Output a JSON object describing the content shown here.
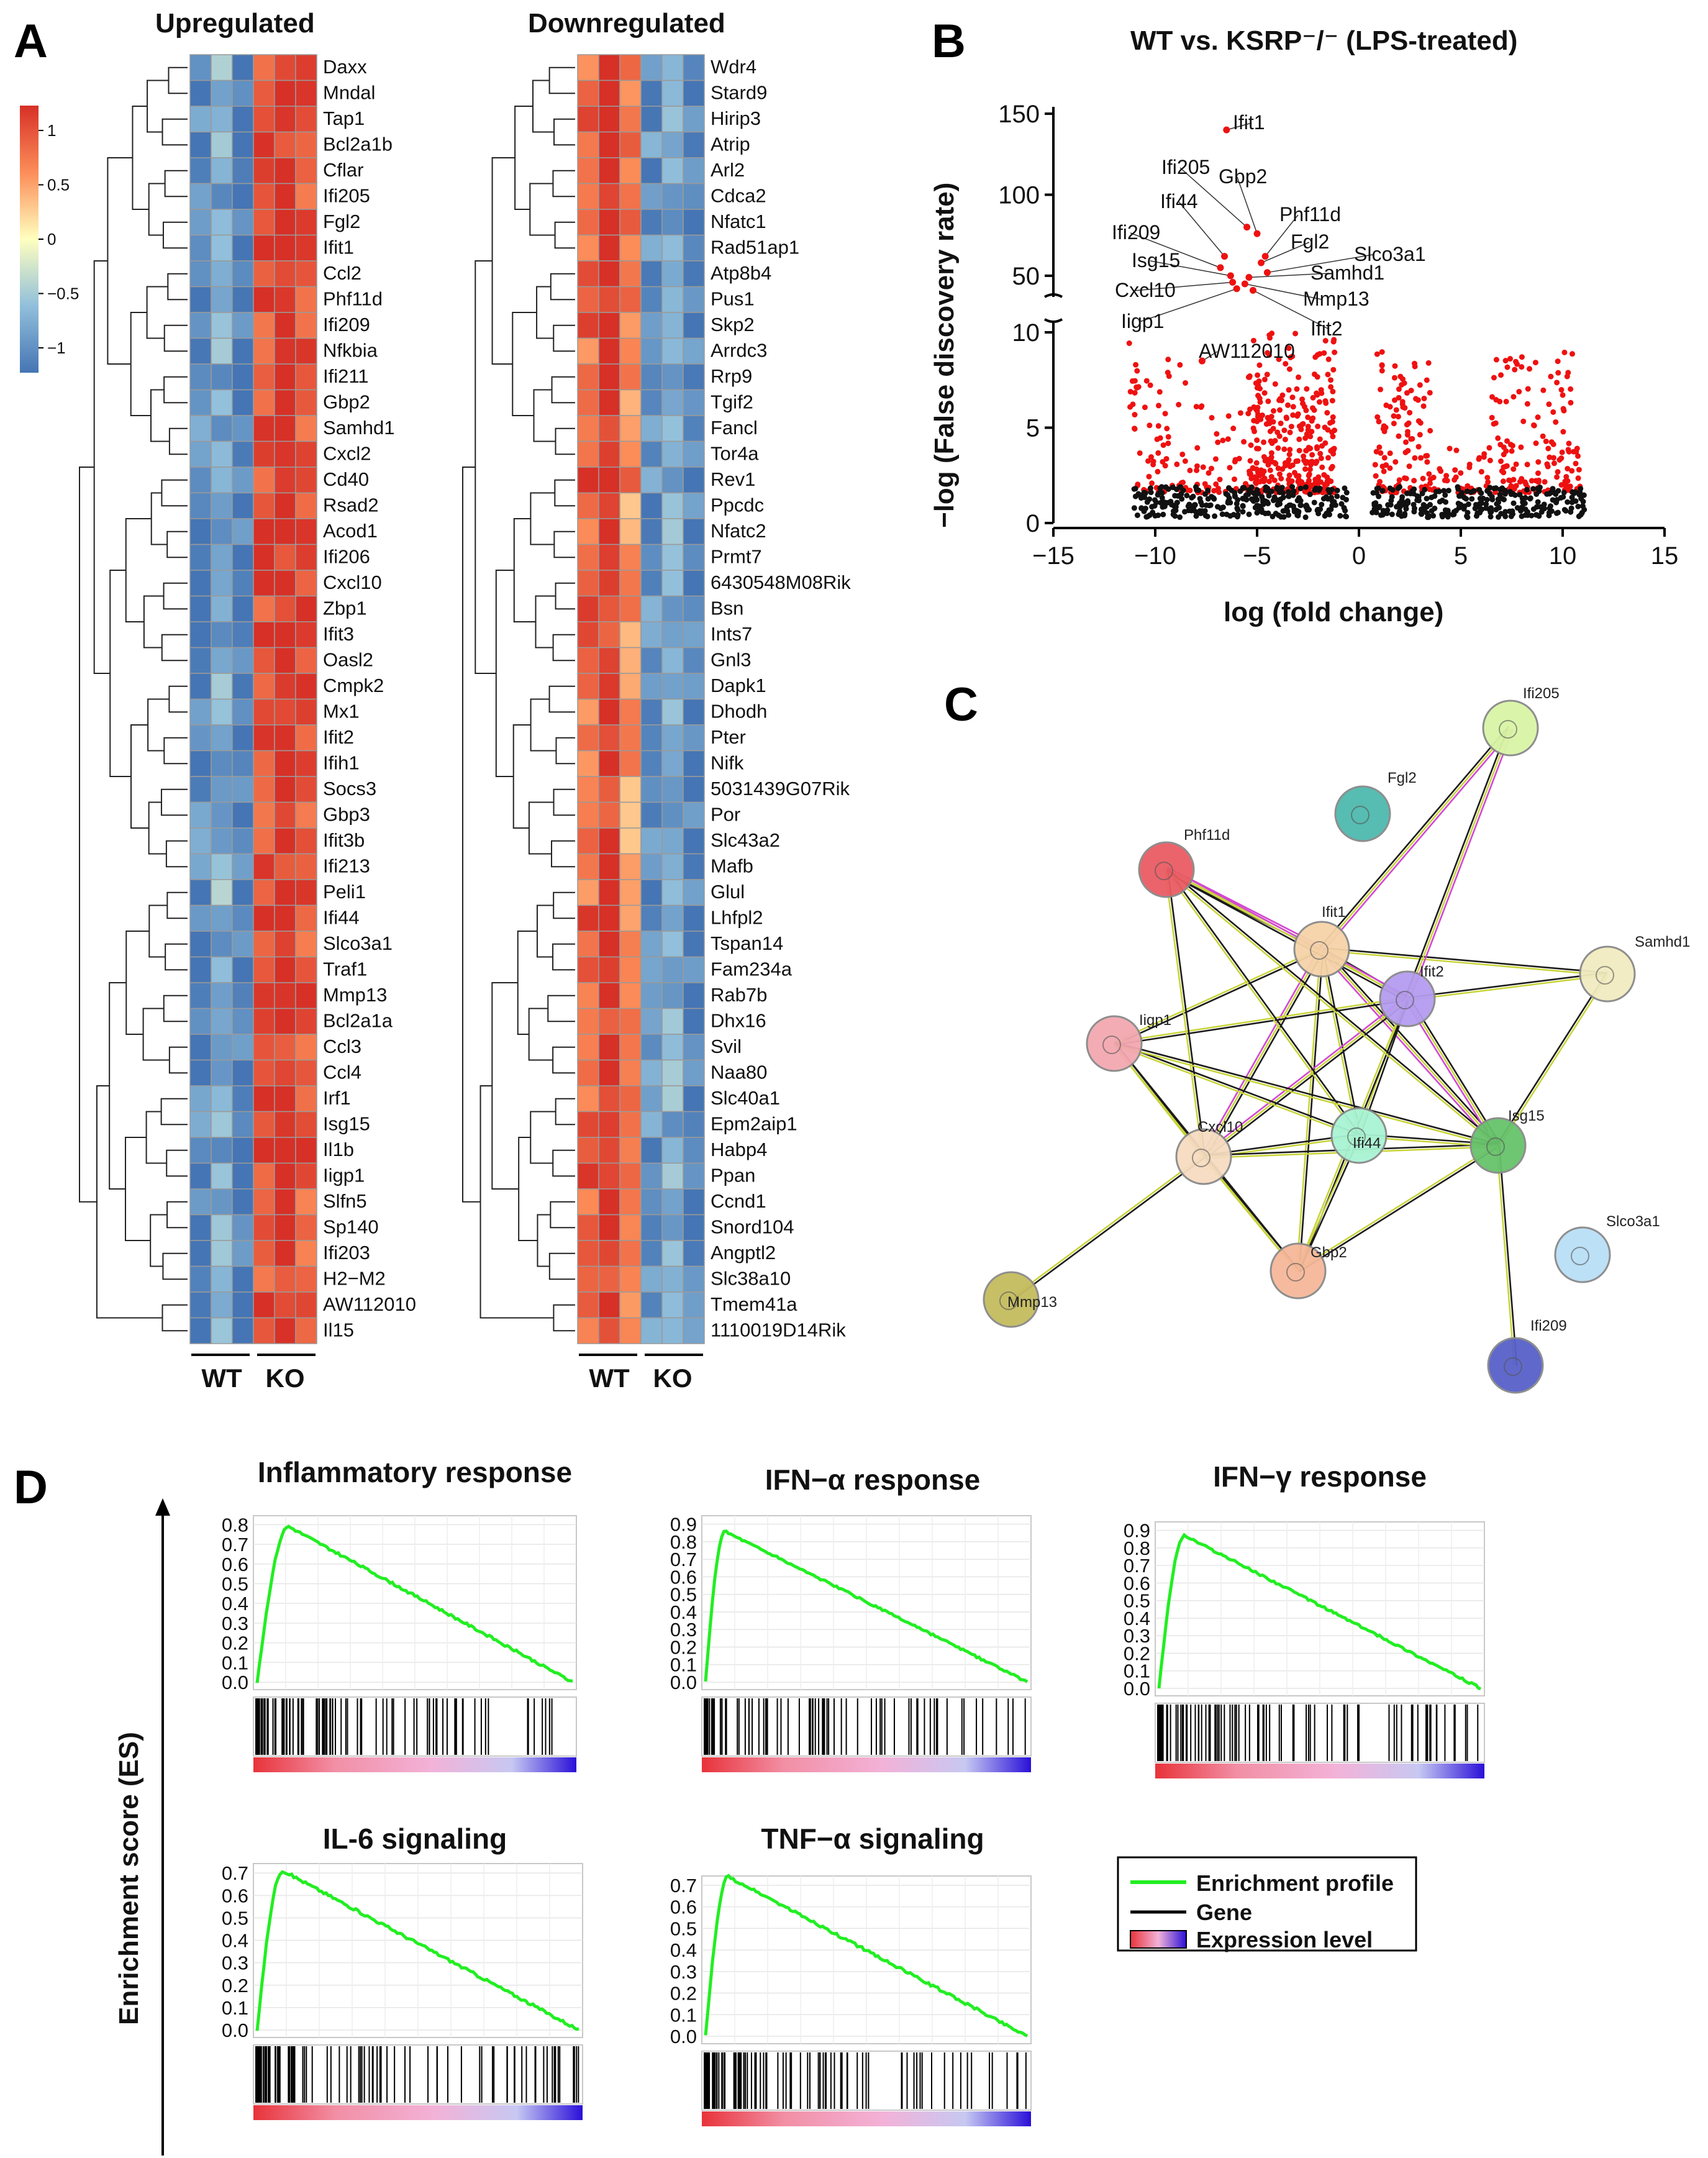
{
  "panel_letters": {
    "a": "A",
    "b": "B",
    "c": "C",
    "d": "D"
  },
  "colors": {
    "heat_low": "#4575b4",
    "heat_lowmid": "#91bfdb",
    "heat_mid": "#ffffbf",
    "heat_highmid": "#fc8d59",
    "heat_high": "#d73027",
    "volcano_sig": "#ee1111",
    "volcano_ns": "#111111",
    "gsea_line": "#22ee22",
    "gsea_bar_hi": "#e8333a",
    "gsea_bar_mid": "#f3b2d8",
    "gsea_bar_lo": "#2a10d8"
  },
  "heatmap": {
    "colorbar": {
      "ticks": [
        1,
        0.5,
        0,
        -0.5,
        -1
      ],
      "tick_labels": [
        "1",
        "0.5",
        "0",
        "−0.5",
        "−1"
      ]
    },
    "groups": [
      "WT",
      "KO"
    ],
    "upregulated": {
      "title": "Upregulated",
      "genes": [
        "Daxx",
        "Mndal",
        "Tap1",
        "Bcl2a1b",
        "Cflar",
        "Ifi205",
        "Fgl2",
        "Ifit1",
        "Ccl2",
        "Phf11d",
        "Ifi209",
        "Nfkbia",
        "Ifi211",
        "Gbp2",
        "Samhd1",
        "Cxcl2",
        "Cd40",
        "Rsad2",
        "Acod1",
        "Ifi206",
        "Cxcl10",
        "Zbp1",
        "Ifit3",
        "Oasl2",
        "Cmpk2",
        "Mx1",
        "Ifit2",
        "Ifih1",
        "Socs3",
        "Gbp3",
        "Ifit3b",
        "Ifi213",
        "Peli1",
        "Ifi44",
        "Slco3a1",
        "Traf1",
        "Mmp13",
        "Bcl2a1a",
        "Ccl3",
        "Ccl4",
        "Irf1",
        "Isg15",
        "Il1b",
        "Iigp1",
        "Slfn5",
        "Sp140",
        "Ifi203",
        "H2−M2",
        "AW112010",
        "Il15"
      ],
      "wt_pattern": [
        -0.9,
        -0.6,
        -1.0
      ],
      "ko_pattern": [
        0.85,
        1.0,
        0.8
      ]
    },
    "downregulated": {
      "title": "Downregulated",
      "genes": [
        "Wdr4",
        "Stard9",
        "Hirip3",
        "Atrip",
        "Arl2",
        "Cdca2",
        "Nfatc1",
        "Rad51ap1",
        "Atp8b4",
        "Pus1",
        "Skp2",
        "Arrdc3",
        "Rrp9",
        "Tgif2",
        "Fancl",
        "Tor4a",
        "Rev1",
        "Ppcdc",
        "Nfatc2",
        "Prmt7",
        "6430548M08Rik",
        "Bsn",
        "Ints7",
        "Gnl3",
        "Dapk1",
        "Dhodh",
        "Pter",
        "Nifk",
        "5031439G07Rik",
        "Por",
        "Slc43a2",
        "Mafb",
        "Glul",
        "Lhfpl2",
        "Tspan14",
        "Fam234a",
        "Rab7b",
        "Dhx16",
        "Svil",
        "Naa80",
        "Slc40a1",
        "Epm2aip1",
        "Habp4",
        "Ppan",
        "Ccnd1",
        "Snord104",
        "Angptl2",
        "Slc38a10",
        "Tmem41a",
        "1110019D14Rik"
      ],
      "wt_pattern": [
        0.7,
        1.0,
        0.5
      ],
      "ko_pattern": [
        -0.8,
        -0.6,
        -0.9
      ]
    }
  },
  "chart_data": [
    {
      "type": "scatter",
      "title": "WT vs. KSRP⁻/⁻ (LPS-treated)",
      "xlabel": "log (fold change)",
      "ylabel": "−log (False discovery rate)",
      "xlim": [
        -15,
        15
      ],
      "x_ticks": [
        -15,
        -10,
        -5,
        0,
        5,
        10,
        15
      ],
      "y_lower_ticks": [
        0,
        5,
        10
      ],
      "y_upper_ticks": [
        50,
        100,
        150
      ],
      "y_break": [
        10,
        40
      ],
      "labeled_points": [
        {
          "gene": "Ifit1",
          "x": -6.5,
          "y": 140
        },
        {
          "gene": "Ifi205",
          "x": -5.5,
          "y": 80
        },
        {
          "gene": "Gbp2",
          "x": -5.0,
          "y": 76
        },
        {
          "gene": "Ifi44",
          "x": -6.6,
          "y": 62
        },
        {
          "gene": "Phf11d",
          "x": -4.6,
          "y": 62
        },
        {
          "gene": "Fgl2",
          "x": -4.8,
          "y": 58
        },
        {
          "gene": "Ifi209",
          "x": -6.8,
          "y": 55
        },
        {
          "gene": "Slco3a1",
          "x": -4.5,
          "y": 52
        },
        {
          "gene": "Isg15",
          "x": -6.3,
          "y": 50
        },
        {
          "gene": "Samhd1",
          "x": -5.4,
          "y": 49
        },
        {
          "gene": "Cxcl10",
          "x": -6.2,
          "y": 46
        },
        {
          "gene": "Mmp13",
          "x": -5.6,
          "y": 45
        },
        {
          "gene": "Iigp1",
          "x": -6.0,
          "y": 42
        },
        {
          "gene": "Ifit2",
          "x": -5.2,
          "y": 41
        },
        {
          "gene": "AW112010",
          "x": -7.7,
          "y": 8.5
        }
      ],
      "series": [
        {
          "name": "significant",
          "color": "#ee1111",
          "description": "FDR-significant genes, clusters near x=-11..-8, -5..-1.5, 1..3, 6..11"
        },
        {
          "name": "not significant",
          "color": "#111111",
          "description": "genes with -log FDR < ~2"
        }
      ]
    },
    {
      "type": "line",
      "title": "Inflammatory response",
      "ylabel": "Enrichment score (ES)",
      "y_ticks": [
        0.0,
        0.1,
        0.2,
        0.3,
        0.4,
        0.5,
        0.6,
        0.7,
        0.8
      ],
      "ylim": [
        0.0,
        0.8
      ],
      "peak_es": 0.79,
      "peak_fraction": 0.1,
      "end_es": 0.0
    },
    {
      "type": "line",
      "title": "IFN−α response",
      "ylabel": "Enrichment score (ES)",
      "y_ticks": [
        0.0,
        0.1,
        0.2,
        0.3,
        0.4,
        0.5,
        0.6,
        0.7,
        0.8,
        0.9
      ],
      "ylim": [
        0.0,
        0.9
      ],
      "peak_es": 0.86,
      "peak_fraction": 0.06,
      "end_es": 0.0
    },
    {
      "type": "line",
      "title": "IFN−γ response",
      "ylabel": "Enrichment score (ES)",
      "y_ticks": [
        0.0,
        0.1,
        0.2,
        0.3,
        0.4,
        0.5,
        0.6,
        0.7,
        0.8,
        0.9
      ],
      "ylim": [
        0.0,
        0.9
      ],
      "peak_es": 0.87,
      "peak_fraction": 0.08,
      "end_es": 0.0
    },
    {
      "type": "line",
      "title": "IL-6 signaling",
      "ylabel": "Enrichment score (ES)",
      "y_ticks": [
        0.0,
        0.1,
        0.2,
        0.3,
        0.4,
        0.5,
        0.6,
        0.7
      ],
      "ylim": [
        0.0,
        0.7
      ],
      "peak_es": 0.71,
      "peak_fraction": 0.08,
      "end_es": 0.0
    },
    {
      "type": "line",
      "title": "TNF−α signaling",
      "ylabel": "Enrichment score (ES)",
      "y_ticks": [
        0.0,
        0.1,
        0.2,
        0.3,
        0.4,
        0.5,
        0.6,
        0.7
      ],
      "ylim": [
        0.0,
        0.7
      ],
      "peak_es": 0.74,
      "peak_fraction": 0.07,
      "end_es": 0.0
    }
  ],
  "network": {
    "nodes": [
      {
        "label": "Ifi205",
        "color": "#d9f5a6"
      },
      {
        "label": "Fgl2",
        "color": "#4fb9ad"
      },
      {
        "label": "Phf11d",
        "color": "#ea5c64"
      },
      {
        "label": "Ifit1",
        "color": "#f6d3a9"
      },
      {
        "label": "Ifit2",
        "color": "#b59cf0"
      },
      {
        "label": "Samhd1",
        "color": "#f1ebc0"
      },
      {
        "label": "Iigp1",
        "color": "#f3a8b0"
      },
      {
        "label": "Cxcl10",
        "color": "#f6dcc0"
      },
      {
        "label": "Ifi44",
        "color": "#a9f4d4"
      },
      {
        "label": "Isg15",
        "color": "#67c26b"
      },
      {
        "label": "Gbp2",
        "color": "#f6b899"
      },
      {
        "label": "Slco3a1",
        "color": "#b9dff6"
      },
      {
        "label": "Mmp13",
        "color": "#c5bc5e"
      },
      {
        "label": "Ifi209",
        "color": "#5861c9"
      }
    ],
    "edges": [
      [
        "Ifit1",
        "Ifit2"
      ],
      [
        "Ifit1",
        "Phf11d"
      ],
      [
        "Ifit1",
        "Iigp1"
      ],
      [
        "Ifit1",
        "Cxcl10"
      ],
      [
        "Ifit1",
        "Ifi44"
      ],
      [
        "Ifit1",
        "Isg15"
      ],
      [
        "Ifit1",
        "Gbp2"
      ],
      [
        "Ifit1",
        "Samhd1"
      ],
      [
        "Ifit1",
        "Ifi205"
      ],
      [
        "Ifit2",
        "Phf11d"
      ],
      [
        "Ifit2",
        "Iigp1"
      ],
      [
        "Ifit2",
        "Cxcl10"
      ],
      [
        "Ifit2",
        "Ifi44"
      ],
      [
        "Ifit2",
        "Isg15"
      ],
      [
        "Ifit2",
        "Gbp2"
      ],
      [
        "Ifit2",
        "Samhd1"
      ],
      [
        "Ifit2",
        "Ifi205"
      ],
      [
        "Phf11d",
        "Ifi44"
      ],
      [
        "Phf11d",
        "Isg15"
      ],
      [
        "Phf11d",
        "Cxcl10"
      ],
      [
        "Iigp1",
        "Cxcl10"
      ],
      [
        "Iigp1",
        "Ifi44"
      ],
      [
        "Iigp1",
        "Isg15"
      ],
      [
        "Iigp1",
        "Gbp2"
      ],
      [
        "Cxcl10",
        "Ifi44"
      ],
      [
        "Cxcl10",
        "Isg15"
      ],
      [
        "Cxcl10",
        "Gbp2"
      ],
      [
        "Cxcl10",
        "Mmp13"
      ],
      [
        "Ifi44",
        "Isg15"
      ],
      [
        "Ifi44",
        "Gbp2"
      ],
      [
        "Isg15",
        "Gbp2"
      ],
      [
        "Isg15",
        "Samhd1"
      ],
      [
        "Isg15",
        "Ifi209"
      ]
    ]
  },
  "gsea_legend": {
    "profile": "Enrichment profile",
    "gene": "Gene",
    "expression": "Expression level"
  }
}
